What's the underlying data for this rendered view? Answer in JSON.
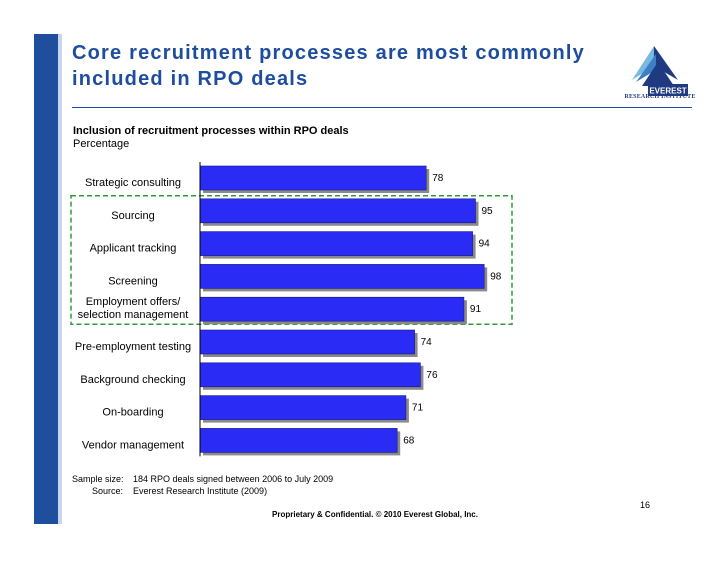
{
  "slide": {
    "title": "Core recruitment processes are most commonly included in RPO deals",
    "logo_tagline": "RESEARCH INSTITUTE",
    "footer": "Proprietary & Confidential. © 2010 Everest Global, Inc.",
    "page_number": "16",
    "notes": {
      "sample_label": "Sample size:",
      "sample_text": "184 RPO deals signed between 2006 to July 2009",
      "source_label": "Source:",
      "source_text": "Everest Research Institute (2009)"
    },
    "colors": {
      "accent": "#1e4da0",
      "bar": "#2a2bf5",
      "highlight_box": "#2f9a3a"
    }
  },
  "chart_data": {
    "type": "bar",
    "orientation": "horizontal",
    "title": "Inclusion of recruitment processes within RPO deals",
    "subtitle": "Percentage",
    "categories": [
      "Strategic consulting",
      "Sourcing",
      "Applicant tracking",
      "Screening",
      "Employment offers/ selection management",
      "Pre-employment testing",
      "Background checking",
      "On-boarding",
      "Vendor management"
    ],
    "values": [
      78,
      95,
      94,
      98,
      91,
      74,
      76,
      71,
      68
    ],
    "xlim": [
      0,
      100
    ],
    "grid": false,
    "legend": "none",
    "highlighted_categories": [
      "Sourcing",
      "Applicant tracking",
      "Screening",
      "Employment offers/ selection management"
    ]
  }
}
